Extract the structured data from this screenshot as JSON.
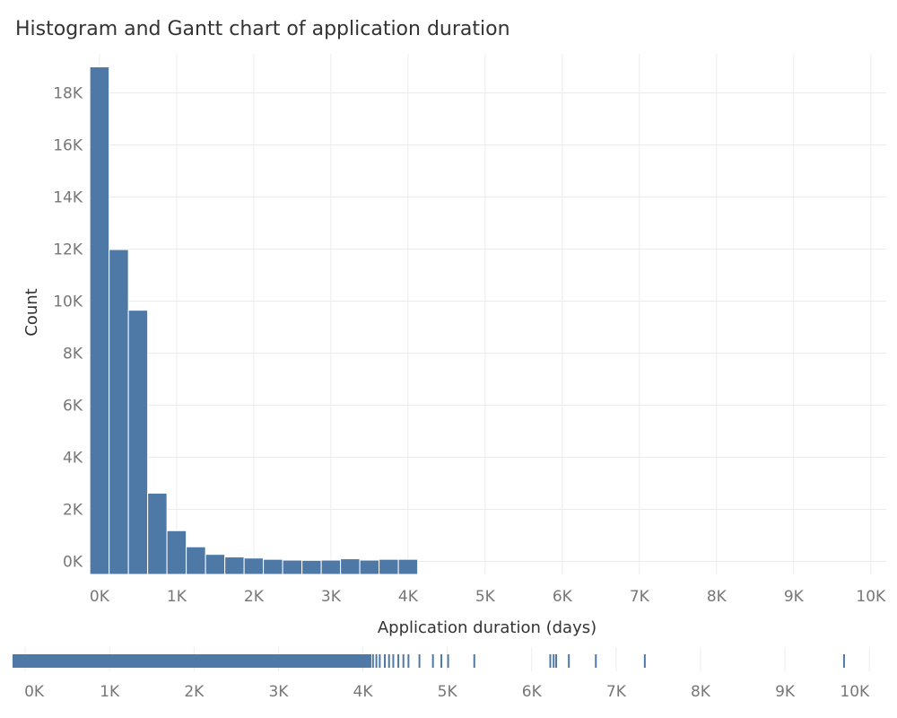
{
  "chart_data": [
    {
      "type": "bar",
      "title": "Histogram and Gantt chart of application duration",
      "xlabel": "Application duration (days)",
      "ylabel": "Count",
      "bin_width": 250,
      "xlim": [
        -150,
        10200
      ],
      "ylim": [
        -500,
        19500
      ],
      "x_ticks": [
        0,
        1000,
        2000,
        3000,
        4000,
        5000,
        6000,
        7000,
        8000,
        9000,
        10000
      ],
      "x_tick_labels": [
        "0K",
        "1K",
        "2K",
        "3K",
        "4K",
        "5K",
        "6K",
        "7K",
        "8K",
        "9K",
        "10K"
      ],
      "y_ticks": [
        0,
        2000,
        4000,
        6000,
        8000,
        10000,
        12000,
        14000,
        16000,
        18000
      ],
      "y_tick_labels": [
        "0K",
        "2K",
        "4K",
        "6K",
        "8K",
        "10K",
        "12K",
        "14K",
        "16K",
        "18K"
      ],
      "grid": true,
      "bin_starts": [
        -125,
        125,
        375,
        625,
        875,
        1125,
        1375,
        1625,
        1875,
        2125,
        2375,
        2625,
        2875,
        3125,
        3375,
        3625,
        3875
      ],
      "values": [
        19000,
        11980,
        9650,
        2620,
        1180,
        560,
        270,
        170,
        130,
        80,
        50,
        40,
        50,
        100,
        50,
        80,
        80
      ]
    },
    {
      "type": "gantt",
      "xlim": [
        -150,
        10200
      ],
      "x_ticks": [
        0,
        1000,
        2000,
        3000,
        4000,
        5000,
        6000,
        7000,
        8000,
        9000,
        10000
      ],
      "x_tick_labels": [
        "0K",
        "1K",
        "2K",
        "3K",
        "4K",
        "5K",
        "6K",
        "7K",
        "8K",
        "9K",
        "10K"
      ],
      "range": [
        -150,
        4100
      ],
      "marks": [
        4120,
        4160,
        4200,
        4260,
        4310,
        4360,
        4420,
        4480,
        4540,
        4670,
        4830,
        4930,
        5010,
        5320,
        6220,
        6260,
        6290,
        6440,
        6760,
        7340,
        9700
      ]
    }
  ]
}
